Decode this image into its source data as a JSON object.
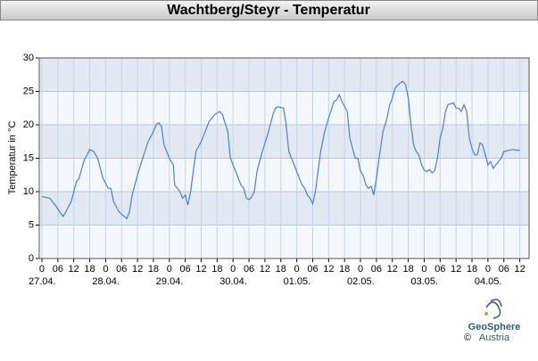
{
  "chart_data": {
    "type": "line",
    "title": "Wachtberg/Steyr - Temperatur",
    "ylabel": "Temperatur in °C",
    "series": [
      {
        "name": "Temperatur",
        "color": "#4a7fd6",
        "x": [
          0,
          3,
          5,
          7,
          8,
          9,
          11,
          13,
          14,
          16,
          17,
          18,
          19.5,
          21,
          23,
          25,
          26,
          27,
          29,
          31,
          32,
          33,
          34,
          36,
          38,
          40,
          42,
          43,
          44,
          45,
          46,
          47,
          48,
          49.5,
          50,
          52,
          53,
          54,
          55,
          56,
          57,
          58,
          60,
          62,
          63,
          65,
          67,
          68,
          70,
          71,
          73,
          75,
          76,
          77,
          78,
          79,
          80,
          81,
          83,
          85,
          86,
          87,
          88,
          89,
          91,
          92,
          93,
          95,
          96,
          98,
          99,
          100,
          101,
          102,
          103,
          104,
          105,
          106.5,
          108,
          110,
          111,
          112,
          113,
          115,
          116,
          118,
          119,
          120,
          121,
          122,
          123,
          124,
          125,
          126,
          127,
          128.5,
          130,
          131,
          132,
          133,
          135,
          136,
          137,
          138,
          139,
          140,
          141,
          142,
          143,
          144,
          145,
          146,
          147,
          148,
          149,
          150,
          151,
          152,
          153,
          155,
          156,
          157,
          158,
          159,
          160,
          161,
          162,
          163,
          164,
          165,
          166,
          167,
          168,
          169,
          170,
          171,
          173,
          174,
          177,
          179,
          180
        ],
        "values": [
          9.3,
          9,
          8,
          6.8,
          6.3,
          7,
          8.5,
          11.5,
          12,
          14.8,
          15.5,
          16.3,
          16,
          15,
          12,
          10.5,
          10.5,
          8.5,
          7,
          6.3,
          6,
          7,
          9.5,
          12.5,
          15,
          17.5,
          19,
          20,
          20.3,
          19.8,
          17,
          16,
          15,
          14,
          11,
          10,
          9,
          9.5,
          8,
          10,
          13,
          16,
          17.5,
          19.5,
          20.5,
          21.5,
          22,
          21.5,
          19,
          15,
          13,
          11,
          10.5,
          9,
          8.8,
          9.2,
          10,
          13,
          16,
          18.5,
          20,
          21.5,
          22.5,
          22.7,
          22.5,
          20,
          16,
          14,
          13,
          11,
          10.5,
          9.5,
          9,
          8.2,
          10,
          13,
          16,
          19,
          21,
          23.5,
          23.7,
          24.5,
          23.5,
          22,
          18,
          15,
          15,
          13,
          12.5,
          11,
          10.5,
          10.8,
          9.5,
          12,
          15,
          19,
          21,
          23,
          24,
          25.5,
          26.3,
          26.5,
          26,
          24,
          20,
          17,
          16,
          15.5,
          14,
          13.2,
          13,
          13.3,
          12.8,
          13.2,
          15,
          18,
          19.5,
          22,
          23,
          23.3,
          22.5,
          22.5,
          22,
          23,
          22,
          18,
          16.5,
          15.5,
          15.5,
          17.3,
          17,
          15.5,
          14,
          14.5,
          13.5,
          14,
          15,
          16,
          16.3,
          16.2,
          16.2
        ]
      }
    ],
    "xlim": [
      -1,
      183.5
    ],
    "xticks": [
      0,
      {
        "value": 6,
        "label": "06"
      },
      12,
      18,
      {
        "value": 24,
        "label": "0"
      },
      {
        "value": 30,
        "label": "06"
      },
      {
        "value": 36,
        "label": "12"
      },
      {
        "value": 42,
        "label": "18"
      },
      {
        "value": 48,
        "label": "0"
      },
      {
        "value": 54,
        "label": "06"
      },
      {
        "value": 60,
        "label": "12"
      },
      {
        "value": 66,
        "label": "18"
      },
      {
        "value": 72,
        "label": "0"
      },
      {
        "value": 78,
        "label": "06"
      },
      {
        "value": 84,
        "label": "12"
      },
      {
        "value": 90,
        "label": "18"
      },
      {
        "value": 96,
        "label": "0"
      },
      {
        "value": 102,
        "label": "06"
      },
      {
        "value": 108,
        "label": "12"
      },
      {
        "value": 114,
        "label": "18"
      },
      {
        "value": 120,
        "label": "0"
      },
      {
        "value": 126,
        "label": "06"
      },
      {
        "value": 132,
        "label": "12"
      },
      {
        "value": 138,
        "label": "18"
      },
      {
        "value": 144,
        "label": "0"
      },
      {
        "value": 150,
        "label": "06"
      },
      {
        "value": 156,
        "label": "12"
      },
      {
        "value": 162,
        "label": "18"
      },
      {
        "value": 168,
        "label": "0"
      },
      {
        "value": 174,
        "label": "06"
      },
      {
        "value": 180,
        "label": "12"
      }
    ],
    "date_labels": [
      {
        "value": 0,
        "label": "27.04."
      },
      {
        "value": 24,
        "label": "28.04."
      },
      {
        "value": 48,
        "label": "29.04."
      },
      {
        "value": 72,
        "label": "30.04."
      },
      {
        "value": 96,
        "label": "01.05."
      },
      {
        "value": 120,
        "label": "02.05."
      },
      {
        "value": 144,
        "label": "03.05."
      },
      {
        "value": 168,
        "label": "04.05."
      }
    ],
    "ylim": [
      0,
      30
    ],
    "yticks": [
      0,
      5,
      10,
      15,
      20,
      25,
      30
    ],
    "grid": true,
    "logo": {
      "copyright": "©",
      "name": "GeoSphere",
      "country": "Austria"
    }
  }
}
